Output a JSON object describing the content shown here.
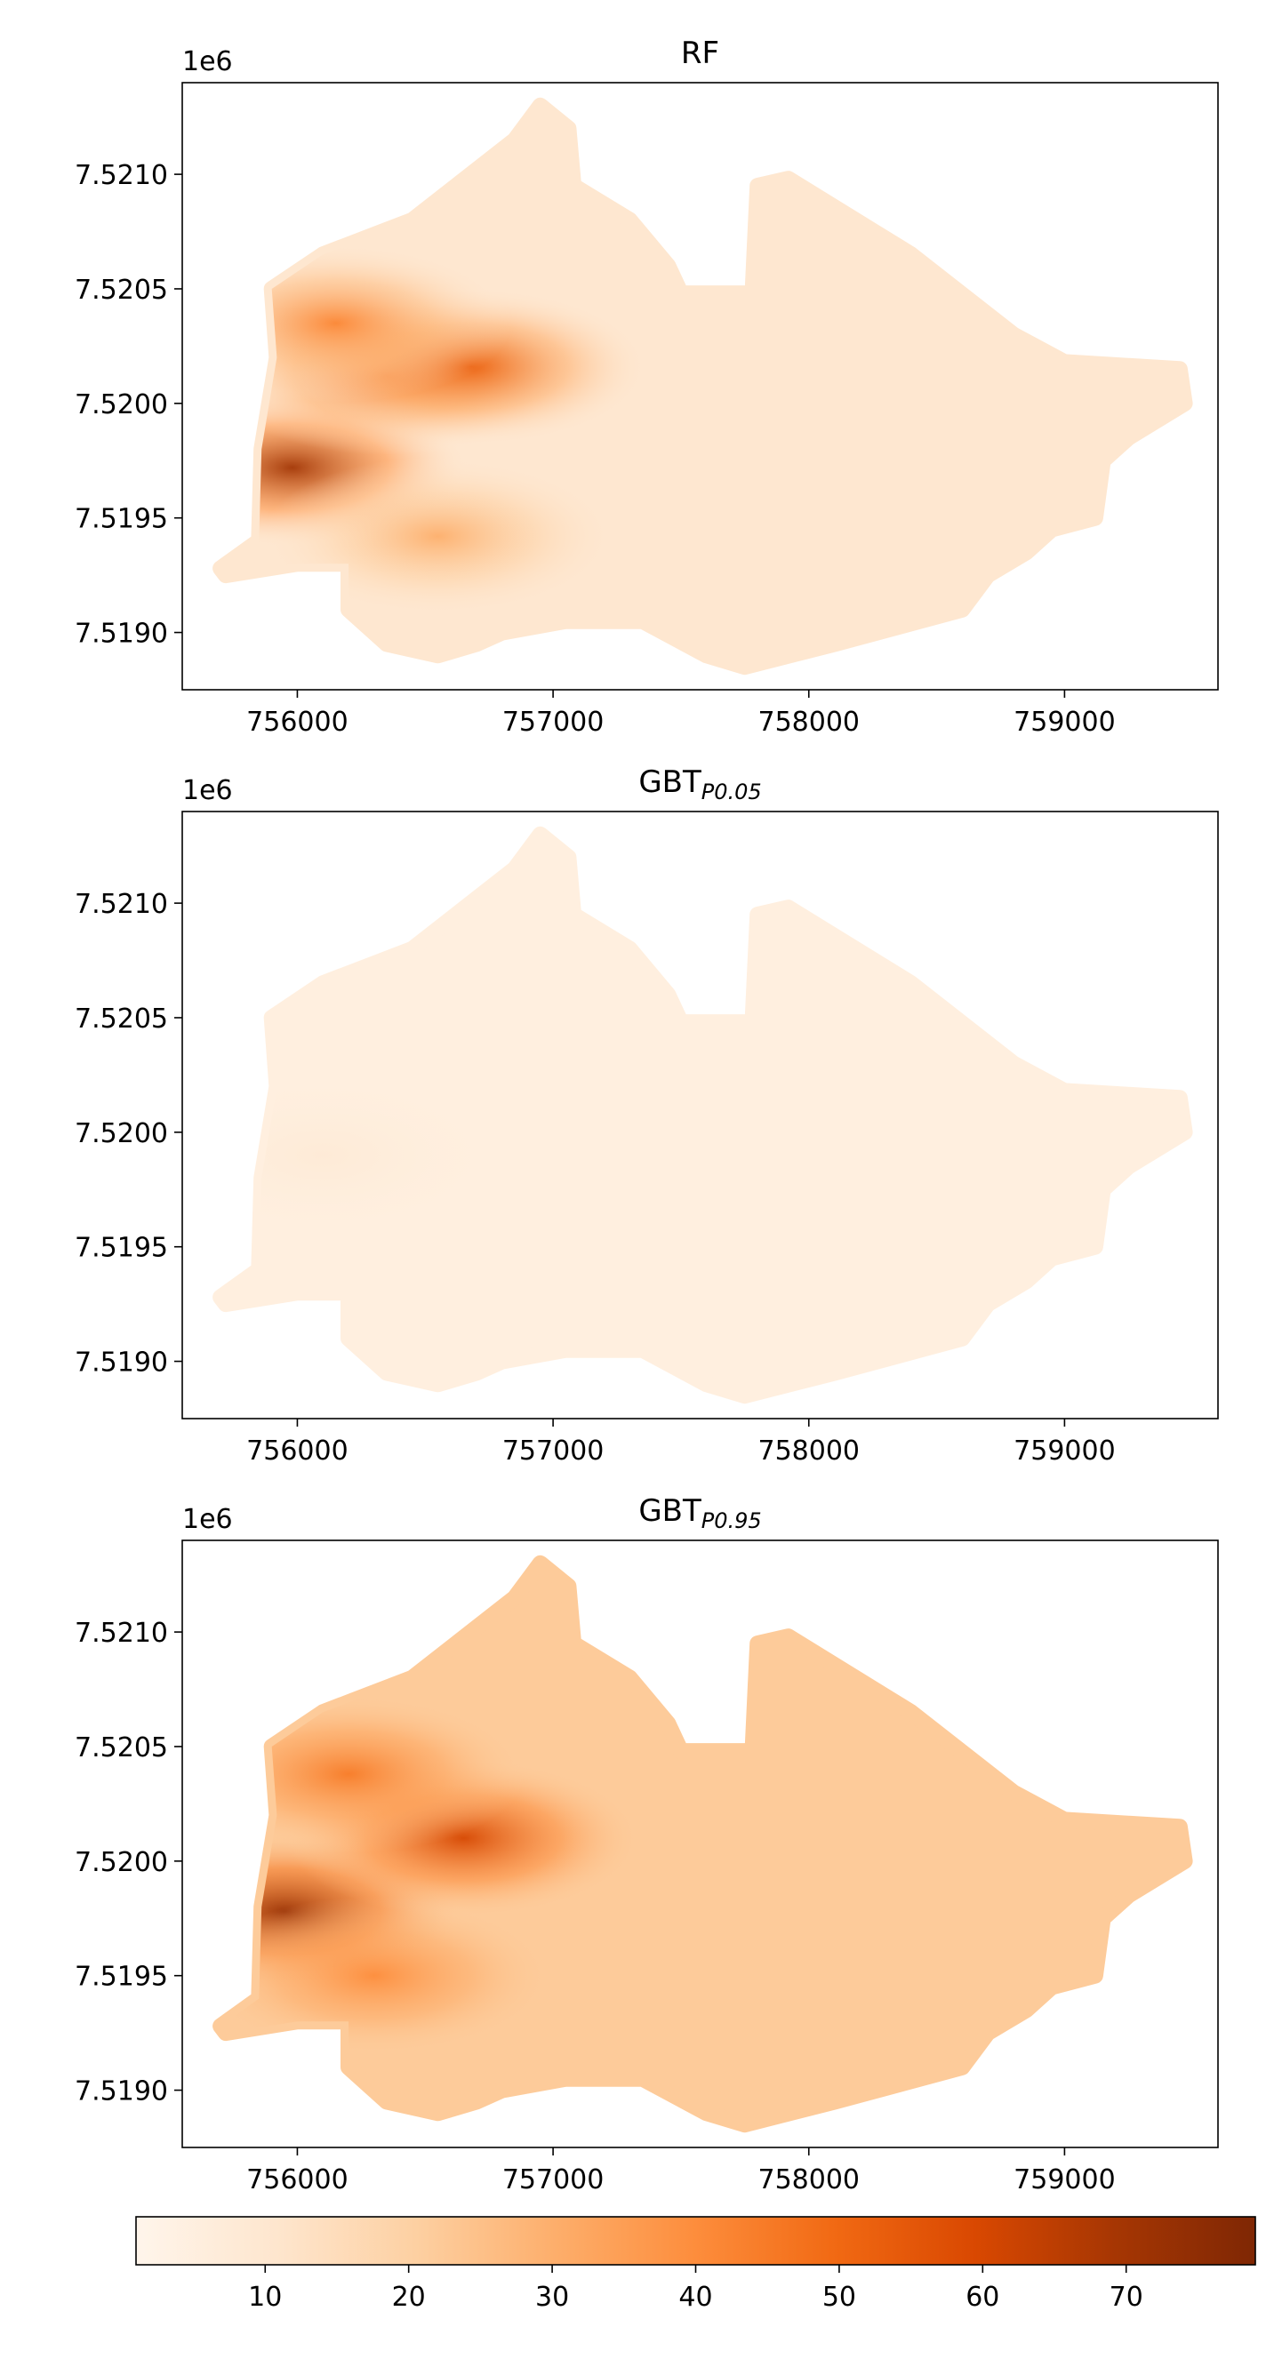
{
  "chart_data": [
    {
      "type": "heatmap",
      "title": "RF",
      "title_sub": "",
      "xlabel": "",
      "ylabel": "",
      "y_offset_label": "1e6",
      "xlim": [
        755550,
        759600
      ],
      "ylim": [
        7518750,
        7521400
      ],
      "xticks": [
        756000,
        757000,
        758000,
        759000
      ],
      "yticks": [
        7519000,
        7519500,
        7520000,
        7520500,
        7521000
      ],
      "ytick_labels": [
        "7.5190",
        "7.5195",
        "7.5200",
        "7.5205",
        "7.5210"
      ],
      "grid": false,
      "field": {
        "base": 10,
        "hotspots": [
          {
            "x": 755980,
            "y": 7519720,
            "value": 70
          },
          {
            "x": 756350,
            "y": 7520120,
            "value": 48
          },
          {
            "x": 756680,
            "y": 7520160,
            "value": 52
          },
          {
            "x": 756150,
            "y": 7520350,
            "value": 42
          },
          {
            "x": 756550,
            "y": 7519420,
            "value": 30
          }
        ]
      }
    },
    {
      "type": "heatmap",
      "title": "GBT",
      "title_sub": "P0.05",
      "xlabel": "",
      "ylabel": "",
      "y_offset_label": "1e6",
      "xlim": [
        755550,
        759600
      ],
      "ylim": [
        7518750,
        7521400
      ],
      "xticks": [
        756000,
        757000,
        758000,
        759000
      ],
      "yticks": [
        7519000,
        7519500,
        7520000,
        7520500,
        7521000
      ],
      "ytick_labels": [
        "7.5190",
        "7.5195",
        "7.5200",
        "7.5205",
        "7.5210"
      ],
      "grid": false,
      "field": {
        "base": 5,
        "hotspots": [
          {
            "x": 756100,
            "y": 7519900,
            "value": 8
          }
        ]
      }
    },
    {
      "type": "heatmap",
      "title": "GBT",
      "title_sub": "P0.95",
      "xlabel": "",
      "ylabel": "",
      "y_offset_label": "1e6",
      "xlim": [
        755550,
        759600
      ],
      "ylim": [
        7518750,
        7521400
      ],
      "xticks": [
        756000,
        757000,
        758000,
        759000
      ],
      "yticks": [
        7519000,
        7519500,
        7520000,
        7520500,
        7521000
      ],
      "ytick_labels": [
        "7.5190",
        "7.5195",
        "7.5200",
        "7.5205",
        "7.5210"
      ],
      "grid": false,
      "field": {
        "base": 22,
        "hotspots": [
          {
            "x": 755950,
            "y": 7519780,
            "value": 72
          },
          {
            "x": 756650,
            "y": 7520100,
            "value": 60
          },
          {
            "x": 756200,
            "y": 7520380,
            "value": 45
          },
          {
            "x": 756300,
            "y": 7519500,
            "value": 40
          }
        ]
      }
    }
  ],
  "colorbar": {
    "cmap": "Oranges",
    "colors": [
      "#fff5eb",
      "#fee6ce",
      "#fdd0a2",
      "#fdae6b",
      "#fd8d3c",
      "#f16913",
      "#d94801",
      "#a63603",
      "#7f2704"
    ],
    "vmin": 1,
    "vmax": 79,
    "ticks": [
      10,
      20,
      30,
      40,
      50,
      60,
      70
    ],
    "orientation": "horizontal",
    "placement": "bottom"
  },
  "region_outline": [
    [
      755720,
      7519250
    ],
    [
      755700,
      7519280
    ],
    [
      755850,
      7519400
    ],
    [
      755860,
      7519800
    ],
    [
      755920,
      7520200
    ],
    [
      755900,
      7520500
    ],
    [
      756100,
      7520650
    ],
    [
      756450,
      7520800
    ],
    [
      756850,
      7521150
    ],
    [
      756950,
      7521300
    ],
    [
      757060,
      7521200
    ],
    [
      757080,
      7520950
    ],
    [
      757300,
      7520800
    ],
    [
      757450,
      7520600
    ],
    [
      757500,
      7520480
    ],
    [
      757780,
      7520480
    ],
    [
      757800,
      7520950
    ],
    [
      757920,
      7520980
    ],
    [
      758400,
      7520650
    ],
    [
      758800,
      7520300
    ],
    [
      759000,
      7520180
    ],
    [
      759450,
      7520150
    ],
    [
      759470,
      7520000
    ],
    [
      759250,
      7519850
    ],
    [
      759150,
      7519750
    ],
    [
      759120,
      7519500
    ],
    [
      758950,
      7519450
    ],
    [
      758850,
      7519350
    ],
    [
      758700,
      7519250
    ],
    [
      758600,
      7519100
    ],
    [
      758100,
      7518950
    ],
    [
      757750,
      7518850
    ],
    [
      757600,
      7518900
    ],
    [
      757350,
      7519050
    ],
    [
      757050,
      7519050
    ],
    [
      756800,
      7519000
    ],
    [
      756700,
      7518950
    ],
    [
      756550,
      7518900
    ],
    [
      756350,
      7518950
    ],
    [
      756200,
      7519100
    ],
    [
      756200,
      7519300
    ],
    [
      756000,
      7519300
    ]
  ]
}
